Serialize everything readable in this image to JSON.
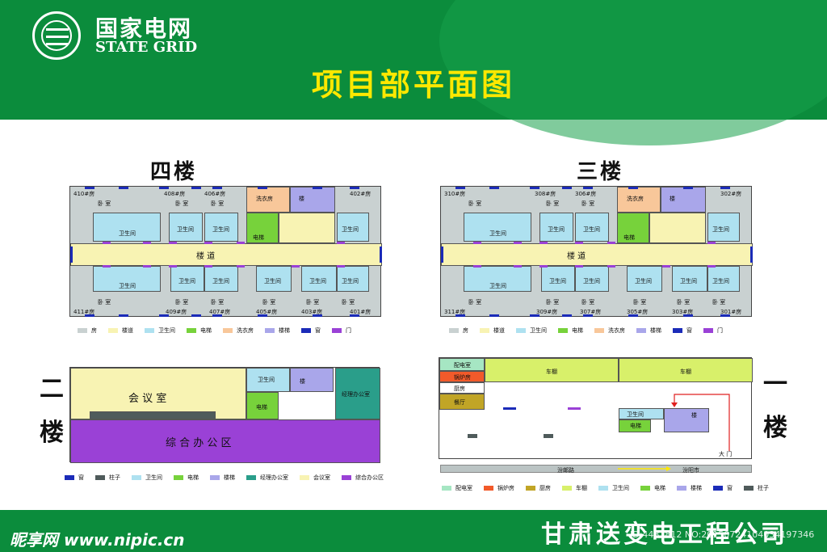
{
  "header": {
    "brand_cn": "国家电网",
    "brand_en": "STATE GRID",
    "title": "项目部平面图"
  },
  "colors": {
    "room": "#c9d1d1",
    "corridor": "#f8f3b3",
    "toilet": "#aee1f0",
    "elevator": "#77d23b",
    "laundry": "#f8c79a",
    "stairs": "#a9a6ea",
    "window": "#1b2bb8",
    "door": "#9a41d6",
    "pillar": "#4f5b5b",
    "manager": "#2a9e8a",
    "meeting": "#f8f3b3",
    "office": "#9a41d6",
    "power": "#a6e6c3",
    "boiler": "#f25a2a",
    "kitchen": "#c1a526",
    "shed": "#d8f06a",
    "header_green": "#0b8c3c",
    "title_yellow": "#ffe800"
  },
  "floor4": {
    "title": "四楼",
    "bedroom": "卧  室",
    "toilet": "卫生间",
    "corridor": "楼          道",
    "laundry": "洗衣房",
    "elevator": "电梯",
    "stairs": "楼",
    "rooms_top": [
      "410#房",
      "408#房",
      "406#房",
      "402#房"
    ],
    "rooms_bottom": [
      "411#房",
      "409#房",
      "407#房",
      "405#房",
      "403#房",
      "401#房"
    ]
  },
  "floor3": {
    "title": "三楼",
    "bedroom": "卧  室",
    "toilet": "卫生间",
    "corridor": "楼          道",
    "laundry": "洗衣房",
    "elevator": "电梯",
    "stairs": "楼",
    "rooms_top": [
      "310#房",
      "308#房",
      "306#房",
      "302#房"
    ],
    "rooms_bottom": [
      "311#房",
      "309#房",
      "307#房",
      "305#房",
      "303#房",
      "301#房"
    ]
  },
  "legend_top": [
    "房",
    "楼道",
    "卫生间",
    "电梯",
    "洗衣房",
    "楼梯",
    "窗",
    "门"
  ],
  "floor2": {
    "title_a": "二",
    "title_b": "楼",
    "meeting": "会 议 室",
    "office": "综  合  办  公  区",
    "toilet": "卫生间",
    "elevator": "电梯",
    "manager": "经理办公室",
    "stairs": "楼"
  },
  "legend_f2": [
    "窗",
    "柱子",
    "卫生间",
    "电梯",
    "楼梯",
    "经理办公室",
    "会议室",
    "综合办公区"
  ],
  "floor1": {
    "title_a": "一",
    "title_b": "楼",
    "power": "配电室",
    "boiler": "锅炉房",
    "kitchen_room": "厨房",
    "canteen": "餐厅",
    "shed": "车棚",
    "toilet": "卫生间",
    "elevator": "电梯",
    "stairs": "楼",
    "gate": "大    门",
    "road_left": "汾邮路",
    "road_right": "汾阳市"
  },
  "legend_f1": [
    "配电室",
    "锅炉房",
    "厨房",
    "车棚",
    "卫生间",
    "电梯",
    "楼梯",
    "窗",
    "柱子"
  ],
  "footer": {
    "company": "甘肃送变电工程公司",
    "watermark_brand": "昵享网 www.nipic.cn",
    "watermark_id": "ID:4481812 NO:20150724104034197346"
  }
}
